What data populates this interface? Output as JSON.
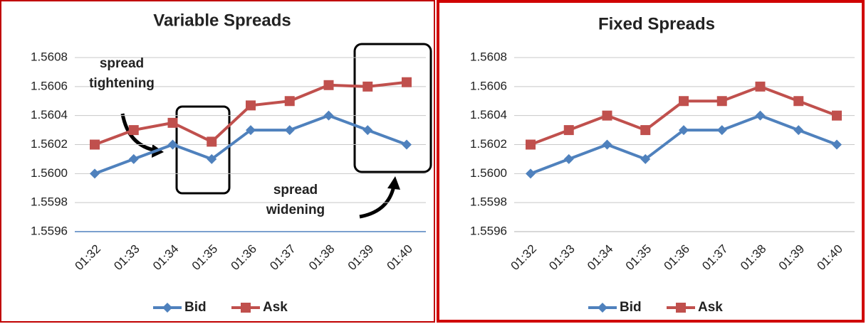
{
  "chart_data": [
    {
      "type": "line",
      "title": "Variable Spreads",
      "categories": [
        "01:32",
        "01:33",
        "01:34",
        "01:35",
        "01:36",
        "01:37",
        "01:38",
        "01:39",
        "01:40"
      ],
      "series": [
        {
          "name": "Bid",
          "color": "#4f81bd",
          "marker": "diamond",
          "values": [
            1.56,
            1.5601,
            1.5602,
            1.5601,
            1.5603,
            1.5603,
            1.5604,
            1.5603,
            1.5602
          ]
        },
        {
          "name": "Ask",
          "color": "#c0504d",
          "marker": "square",
          "values": [
            1.5602,
            1.5603,
            1.56035,
            1.56022,
            1.56047,
            1.5605,
            1.56061,
            1.5606,
            1.56063
          ]
        }
      ],
      "ylim": [
        1.5596,
        1.5608
      ],
      "yticks": [
        1.5596,
        1.5598,
        {
          "value": 1.56,
          "label": "1.5600"
        },
        1.5602,
        1.5604,
        1.5606,
        1.5608
      ],
      "grid": true,
      "legend": "bottom",
      "annotations": [
        [
          "spread",
          "tightening"
        ],
        [
          "spread",
          "widening"
        ]
      ]
    },
    {
      "type": "line",
      "title": "Fixed Spreads",
      "categories": [
        "01:32",
        "01:33",
        "01:34",
        "01:35",
        "01:36",
        "01:37",
        "01:38",
        "01:39",
        "01:40"
      ],
      "series": [
        {
          "name": "Bid",
          "color": "#4f81bd",
          "marker": "diamond",
          "values": [
            1.56,
            1.5601,
            1.5602,
            1.5601,
            1.5603,
            1.5603,
            1.5604,
            1.5603,
            1.5602
          ]
        },
        {
          "name": "Ask",
          "color": "#c0504d",
          "marker": "square",
          "values": [
            1.5602,
            1.5603,
            1.5604,
            1.5603,
            1.5605,
            1.5605,
            1.5606,
            1.5605,
            1.5604
          ]
        }
      ],
      "ylim": [
        1.5596,
        1.5608
      ],
      "yticks": [
        1.5596,
        1.5598,
        {
          "value": 1.56,
          "label": "1.5600"
        },
        1.5602,
        1.5604,
        1.5606,
        1.5608
      ],
      "grid": true,
      "legend": "bottom"
    }
  ]
}
